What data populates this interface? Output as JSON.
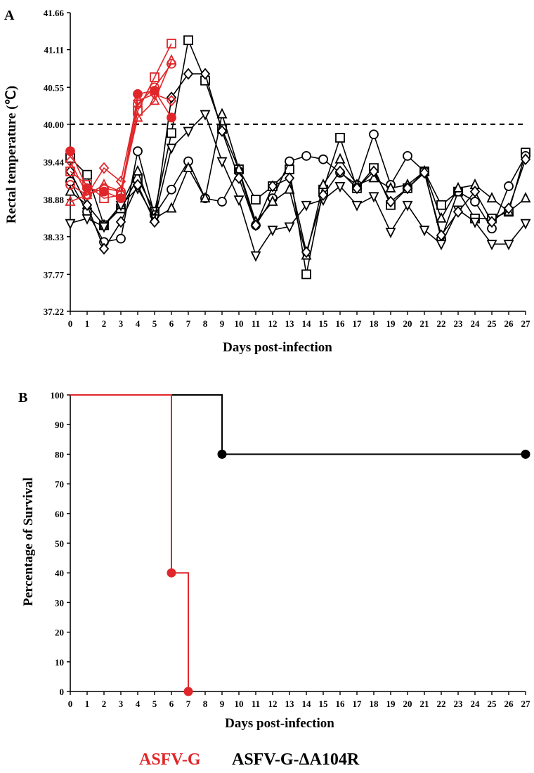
{
  "colors": {
    "red": "#e0262a",
    "black": "#000000"
  },
  "legend": [
    {
      "label": "ASFV-G",
      "color": "#e0262a"
    },
    {
      "label": "ASFV-G-ΔA104R",
      "color": "#000000"
    }
  ],
  "chart_data": [
    {
      "panel": "A",
      "type": "line",
      "xlabel": "Days post-infection",
      "ylabel": "Rectal temperature (℃)",
      "xlim": [
        0,
        27
      ],
      "ylim": [
        37.22,
        41.66
      ],
      "x_ticks": [
        0,
        1,
        2,
        3,
        4,
        5,
        6,
        7,
        8,
        9,
        10,
        11,
        12,
        13,
        14,
        15,
        16,
        17,
        18,
        19,
        20,
        21,
        22,
        23,
        24,
        25,
        26,
        27
      ],
      "y_ticks": [
        "37.22",
        "37.77",
        "38.33",
        "38.88",
        "39.44",
        "40.00",
        "40.55",
        "41.11",
        "41.66"
      ],
      "reference_line": {
        "y": 40.0,
        "style": "dashed"
      },
      "series": [
        {
          "group": "ASFV-G",
          "color": "#e0262a",
          "marker": "square",
          "x": [
            0,
            1,
            2,
            3,
            4,
            5,
            6
          ],
          "y": [
            39.3,
            39.1,
            38.9,
            38.95,
            40.2,
            40.7,
            41.2
          ]
        },
        {
          "group": "ASFV-G",
          "color": "#e0262a",
          "marker": "triangle-up",
          "x": [
            0,
            1,
            2,
            3,
            4,
            5,
            6
          ],
          "y": [
            38.85,
            38.95,
            39.1,
            39.0,
            40.1,
            40.35,
            40.95
          ]
        },
        {
          "group": "ASFV-G",
          "color": "#e0262a",
          "marker": "circle-filled",
          "x": [
            0,
            1,
            2,
            3,
            4,
            5,
            6
          ],
          "y": [
            39.6,
            39.05,
            39.0,
            38.9,
            40.45,
            40.5,
            40.1
          ]
        },
        {
          "group": "ASFV-G",
          "color": "#e0262a",
          "marker": "diamond",
          "x": [
            0,
            1,
            2,
            3,
            4,
            5,
            6
          ],
          "y": [
            39.45,
            38.95,
            39.35,
            39.15,
            40.35,
            40.45,
            40.35
          ]
        },
        {
          "group": "ASFV-G",
          "color": "#e0262a",
          "marker": "circle",
          "x": [
            0,
            1,
            2,
            3,
            4,
            5,
            6
          ],
          "y": [
            39.1,
            38.95,
            39.05,
            39.0,
            40.3,
            40.55,
            40.9
          ]
        },
        {
          "group": "ASFV-G-ΔA104R",
          "color": "#000000",
          "marker": "square",
          "x": [
            0,
            1,
            2,
            3,
            4,
            5,
            6,
            7,
            8,
            9,
            10,
            11,
            12,
            13,
            14,
            15,
            16,
            17,
            18,
            19,
            20,
            21,
            22,
            23,
            24,
            25,
            26,
            27
          ],
          "y": [
            39.5,
            39.25,
            38.5,
            38.75,
            39.2,
            38.7,
            39.87,
            41.25,
            40.65,
            39.93,
            39.33,
            38.88,
            39.08,
            39.33,
            37.77,
            39.03,
            39.8,
            39.05,
            39.35,
            38.8,
            39.05,
            39.3,
            38.8,
            39.0,
            38.6,
            38.6,
            38.7,
            39.58
          ]
        },
        {
          "group": "ASFV-G-ΔA104R",
          "color": "#000000",
          "marker": "circle",
          "x": [
            0,
            1,
            2,
            3,
            4,
            5,
            6,
            7,
            8,
            9,
            10,
            11,
            12,
            13,
            14,
            15,
            16,
            17,
            18,
            19,
            20,
            21,
            22,
            23,
            24,
            25,
            26,
            27
          ],
          "y": [
            39.15,
            38.7,
            38.25,
            38.3,
            39.6,
            38.65,
            39.03,
            39.45,
            38.9,
            38.85,
            39.3,
            38.5,
            38.9,
            39.45,
            39.53,
            39.48,
            39.28,
            39.1,
            39.85,
            39.1,
            39.53,
            39.3,
            38.3,
            39.0,
            38.85,
            38.45,
            39.08,
            39.53
          ]
        },
        {
          "group": "ASFV-G-ΔA104R",
          "color": "#000000",
          "marker": "triangle-up",
          "x": [
            0,
            1,
            2,
            3,
            4,
            5,
            6,
            7,
            8,
            9,
            10,
            11,
            12,
            13,
            14,
            15,
            16,
            17,
            18,
            19,
            20,
            21,
            22,
            23,
            24,
            25,
            26,
            27
          ],
          "y": [
            39.0,
            38.8,
            38.5,
            38.8,
            39.3,
            38.6,
            38.75,
            39.35,
            38.9,
            40.15,
            39.33,
            38.55,
            38.85,
            39.03,
            38.05,
            39.1,
            39.48,
            39.1,
            39.2,
            39.05,
            39.1,
            39.3,
            38.6,
            39.05,
            39.1,
            38.9,
            38.7,
            38.9
          ]
        },
        {
          "group": "ASFV-G-ΔA104R",
          "color": "#000000",
          "marker": "triangle-down",
          "x": [
            0,
            1,
            2,
            3,
            4,
            5,
            6,
            7,
            8,
            9,
            10,
            11,
            12,
            13,
            14,
            15,
            16,
            17,
            18,
            19,
            20,
            21,
            22,
            23,
            24,
            25,
            26,
            27
          ],
          "y": [
            38.53,
            38.6,
            38.48,
            38.8,
            39.05,
            38.6,
            39.65,
            39.9,
            40.15,
            39.45,
            38.88,
            38.05,
            38.43,
            38.48,
            38.8,
            38.88,
            39.08,
            38.8,
            38.93,
            38.4,
            38.8,
            38.43,
            38.22,
            38.73,
            38.55,
            38.22,
            38.22,
            38.53
          ]
        },
        {
          "group": "ASFV-G-ΔA104R",
          "color": "#000000",
          "marker": "diamond",
          "x": [
            0,
            1,
            2,
            3,
            4,
            5,
            6,
            7,
            8,
            9,
            10,
            11,
            12,
            13,
            14,
            15,
            16,
            17,
            18,
            19,
            20,
            21,
            22,
            23,
            24,
            25,
            26,
            27
          ],
          "y": [
            39.3,
            38.8,
            38.15,
            38.55,
            39.1,
            38.55,
            40.4,
            40.75,
            40.75,
            39.9,
            39.2,
            38.5,
            39.08,
            39.2,
            38.1,
            38.95,
            39.3,
            39.05,
            39.3,
            38.85,
            39.05,
            39.28,
            38.35,
            38.7,
            39.0,
            38.55,
            38.75,
            39.48
          ]
        }
      ]
    },
    {
      "panel": "B",
      "type": "line",
      "subtype": "survival-step",
      "xlabel": "Days post-infection",
      "ylabel": "Percentage of Survival",
      "xlim": [
        0,
        27
      ],
      "ylim": [
        0,
        100
      ],
      "x_ticks": [
        0,
        1,
        2,
        3,
        4,
        5,
        6,
        7,
        8,
        9,
        10,
        11,
        12,
        13,
        14,
        15,
        16,
        17,
        18,
        19,
        20,
        21,
        22,
        23,
        24,
        25,
        26,
        27
      ],
      "y_ticks": [
        0,
        10,
        20,
        30,
        40,
        50,
        60,
        70,
        80,
        90,
        100
      ],
      "series": [
        {
          "group": "ASFV-G",
          "color": "#e0262a",
          "x": [
            0,
            6,
            7
          ],
          "y": [
            100,
            40,
            0
          ],
          "markers_at": [
            6,
            7
          ]
        },
        {
          "group": "ASFV-G-ΔA104R",
          "color": "#000000",
          "x": [
            0,
            9,
            27
          ],
          "y": [
            100,
            80,
            80
          ],
          "markers_at": [
            9,
            27
          ]
        }
      ]
    }
  ]
}
